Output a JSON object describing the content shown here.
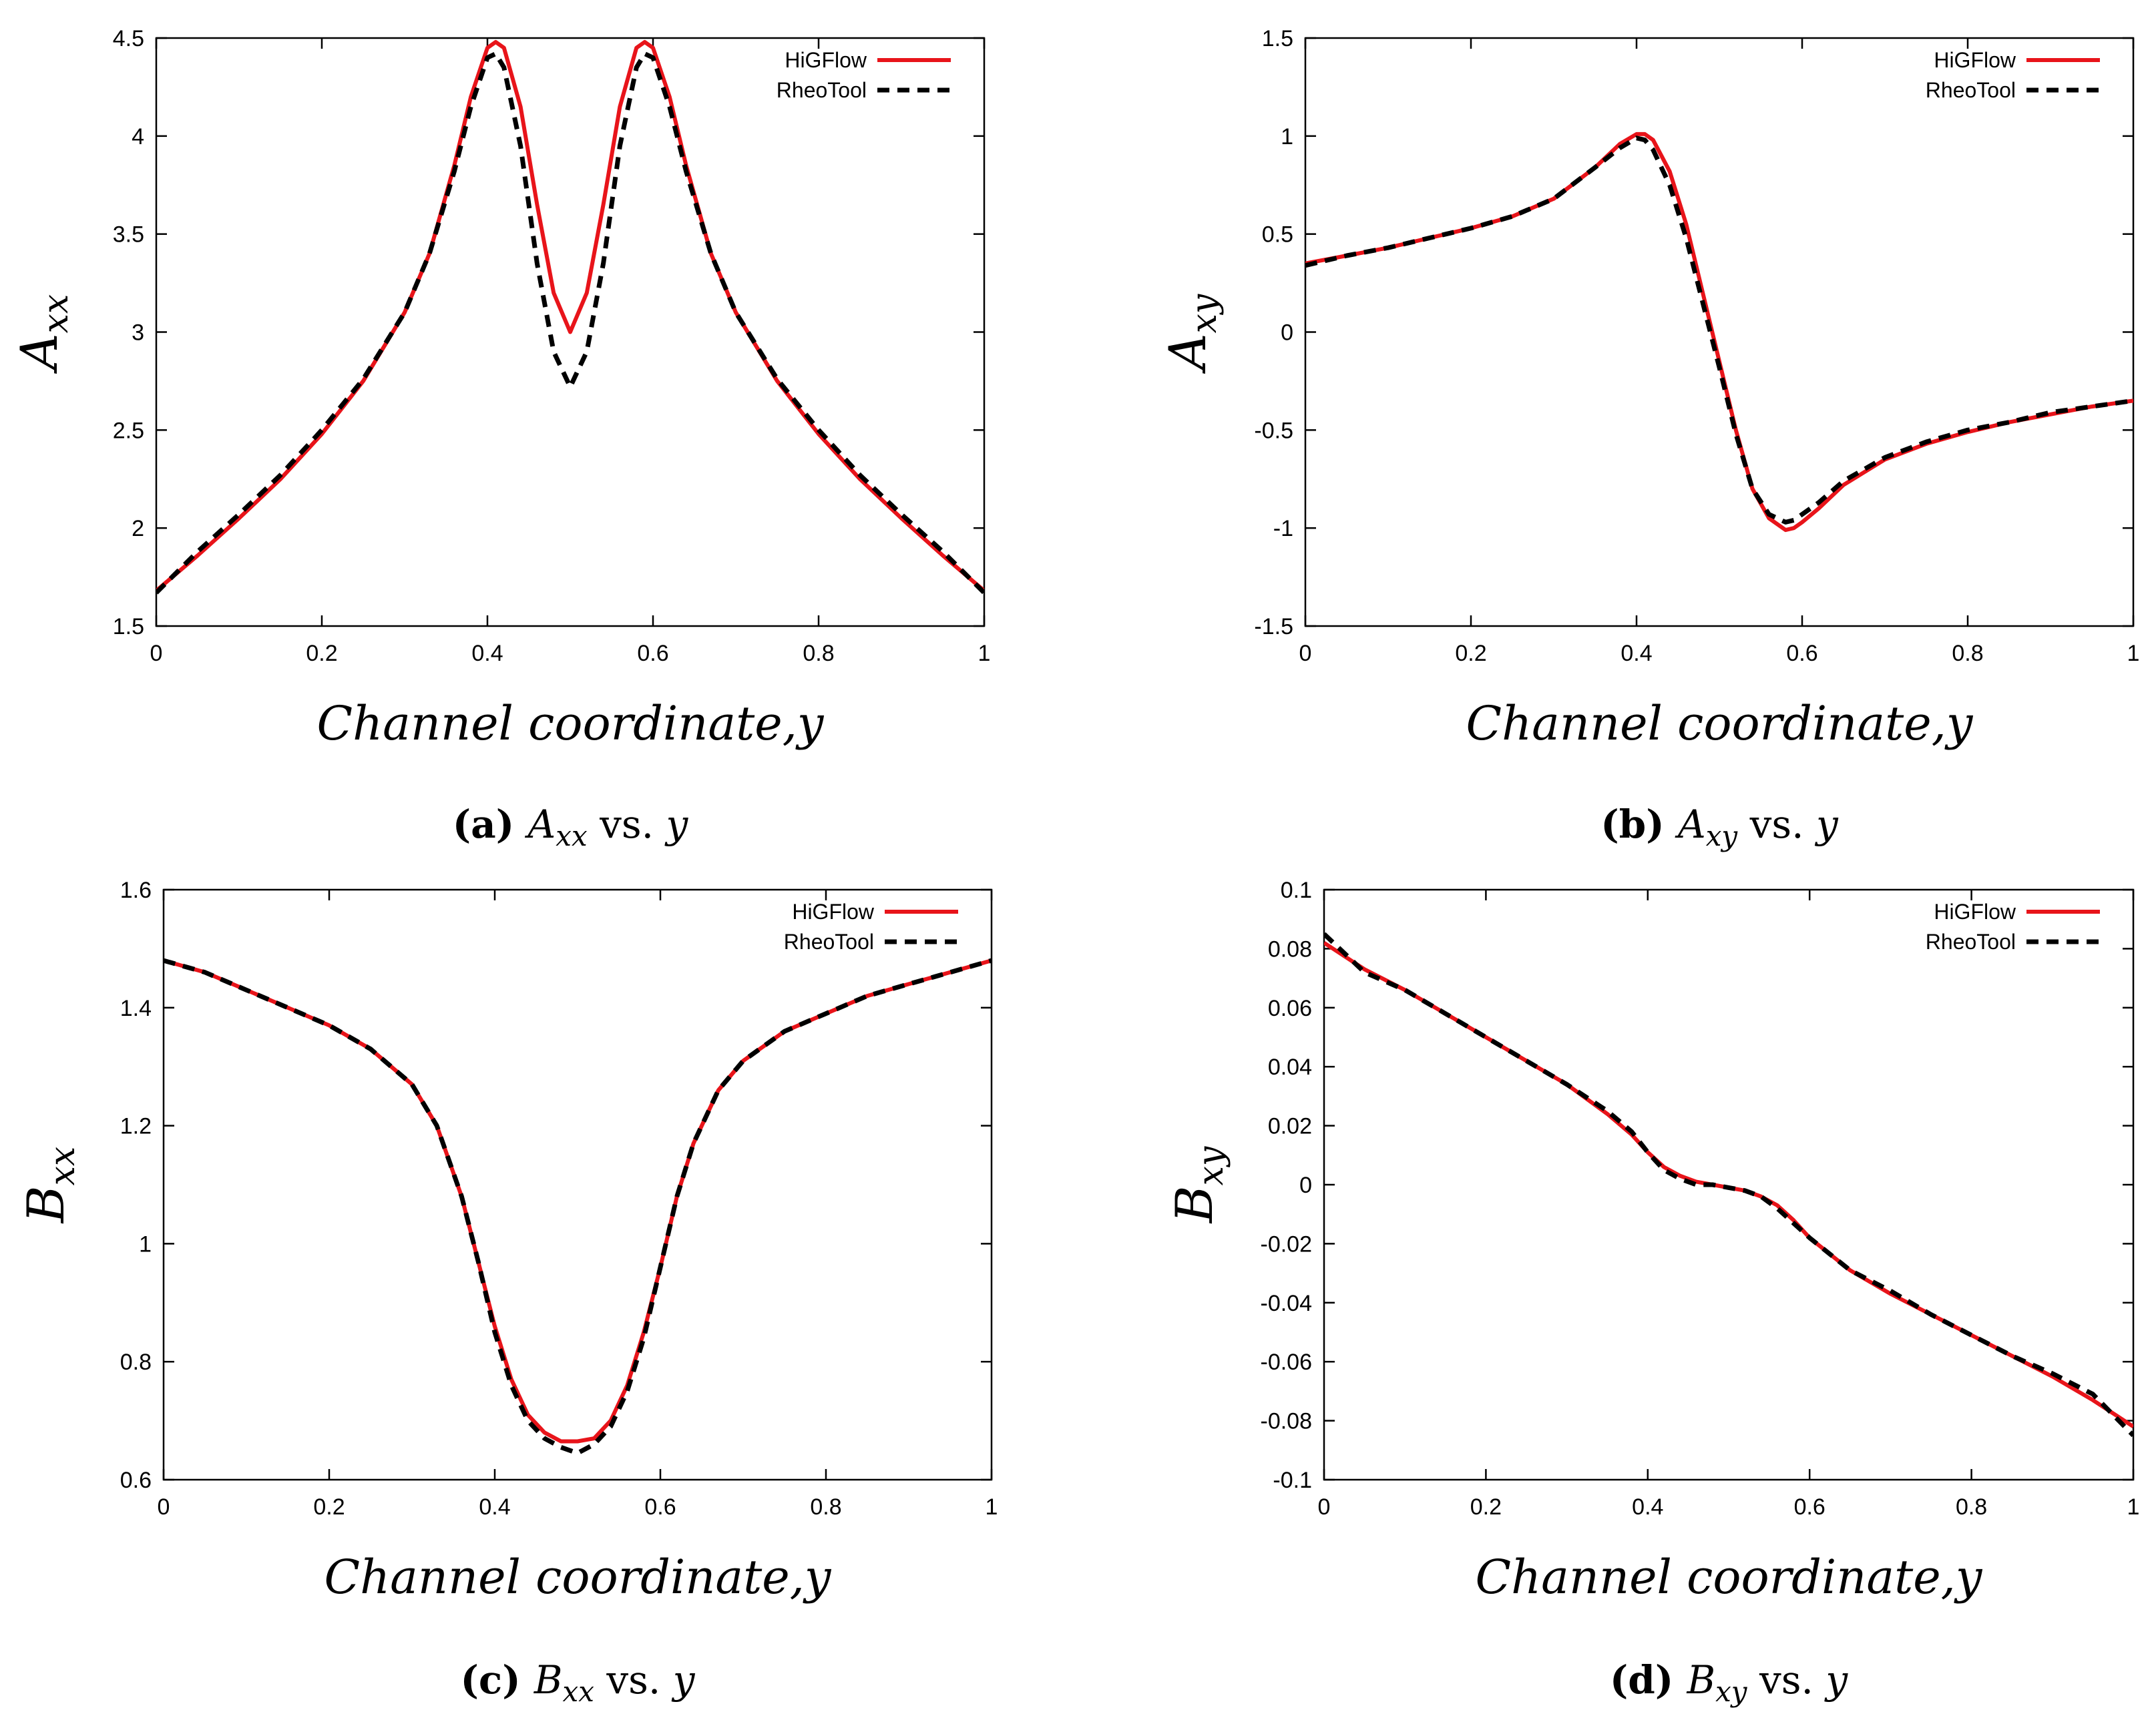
{
  "colors": {
    "higflow": "#e8141a",
    "rheotool": "#000000",
    "frame": "#000000"
  },
  "chart_data": [
    {
      "type": "line",
      "id": "a",
      "title": "",
      "xlabel": "Channel coordinate,y",
      "ylabel_main": "A",
      "ylabel_sub": "xx",
      "xlim": [
        0,
        1
      ],
      "ylim": [
        1.5,
        4.5
      ],
      "xticks": [
        "0",
        "0.2",
        "0.4",
        "0.6",
        "0.8",
        "1"
      ],
      "yticks": [
        "1.5",
        "2",
        "2.5",
        "3",
        "3.5",
        "4",
        "4.5"
      ],
      "legend_position": "top-right",
      "caption": {
        "letter": "(a)",
        "sym": "A",
        "sub": "xx",
        "rest": "vs.",
        "var": "y"
      },
      "series": [
        {
          "name": "HiGFlow",
          "style": "solid",
          "x": [
            0,
            0.05,
            0.1,
            0.15,
            0.2,
            0.25,
            0.3,
            0.33,
            0.36,
            0.38,
            0.4,
            0.41,
            0.42,
            0.44,
            0.46,
            0.48,
            0.5,
            0.52,
            0.54,
            0.56,
            0.58,
            0.59,
            0.6,
            0.62,
            0.64,
            0.67,
            0.7,
            0.75,
            0.8,
            0.85,
            0.9,
            0.95,
            1
          ],
          "y": [
            1.68,
            1.86,
            2.05,
            2.25,
            2.48,
            2.75,
            3.1,
            3.4,
            3.85,
            4.2,
            4.45,
            4.48,
            4.45,
            4.15,
            3.65,
            3.2,
            3.0,
            3.2,
            3.65,
            4.15,
            4.45,
            4.48,
            4.45,
            4.2,
            3.85,
            3.4,
            3.1,
            2.75,
            2.48,
            2.25,
            2.05,
            1.86,
            1.68
          ]
        },
        {
          "name": "RheoTool",
          "style": "dashed",
          "x": [
            0,
            0.05,
            0.1,
            0.15,
            0.2,
            0.25,
            0.3,
            0.33,
            0.36,
            0.38,
            0.4,
            0.41,
            0.42,
            0.44,
            0.46,
            0.48,
            0.5,
            0.52,
            0.54,
            0.56,
            0.58,
            0.59,
            0.6,
            0.62,
            0.64,
            0.67,
            0.7,
            0.75,
            0.8,
            0.85,
            0.9,
            0.95,
            1
          ],
          "y": [
            1.67,
            1.88,
            2.07,
            2.27,
            2.5,
            2.76,
            3.1,
            3.4,
            3.82,
            4.15,
            4.4,
            4.42,
            4.35,
            3.95,
            3.35,
            2.9,
            2.72,
            2.9,
            3.35,
            3.95,
            4.35,
            4.42,
            4.4,
            4.15,
            3.82,
            3.4,
            3.1,
            2.76,
            2.5,
            2.27,
            2.07,
            1.88,
            1.67
          ]
        }
      ]
    },
    {
      "type": "line",
      "id": "b",
      "title": "",
      "xlabel": "Channel coordinate,y",
      "ylabel_main": "A",
      "ylabel_sub": "xy",
      "xlim": [
        0,
        1
      ],
      "ylim": [
        -1.5,
        1.5
      ],
      "xticks": [
        "0",
        "0.2",
        "0.4",
        "0.6",
        "0.8",
        "1"
      ],
      "yticks": [
        "-1.5",
        "-1",
        "-0.5",
        "0",
        "0.5",
        "1",
        "1.5"
      ],
      "legend_position": "top-right",
      "caption": {
        "letter": "(b)",
        "sym": "A",
        "sub": "xy",
        "rest": "vs.",
        "var": "y"
      },
      "series": [
        {
          "name": "HiGFlow",
          "style": "solid",
          "x": [
            0,
            0.05,
            0.1,
            0.15,
            0.2,
            0.25,
            0.3,
            0.35,
            0.38,
            0.4,
            0.41,
            0.42,
            0.44,
            0.46,
            0.48,
            0.5,
            0.52,
            0.54,
            0.56,
            0.58,
            0.59,
            0.6,
            0.62,
            0.65,
            0.7,
            0.75,
            0.8,
            0.85,
            0.9,
            0.95,
            1
          ],
          "y": [
            0.35,
            0.39,
            0.43,
            0.48,
            0.53,
            0.59,
            0.68,
            0.84,
            0.96,
            1.01,
            1.01,
            0.98,
            0.82,
            0.55,
            0.2,
            -0.15,
            -0.5,
            -0.8,
            -0.95,
            -1.01,
            -1.0,
            -0.97,
            -0.9,
            -0.78,
            -0.65,
            -0.57,
            -0.51,
            -0.46,
            -0.42,
            -0.38,
            -0.35
          ]
        },
        {
          "name": "RheoTool",
          "style": "dashed",
          "x": [
            0,
            0.05,
            0.1,
            0.15,
            0.2,
            0.25,
            0.3,
            0.35,
            0.38,
            0.4,
            0.41,
            0.42,
            0.44,
            0.46,
            0.48,
            0.5,
            0.52,
            0.54,
            0.56,
            0.58,
            0.59,
            0.6,
            0.62,
            0.65,
            0.7,
            0.75,
            0.8,
            0.85,
            0.9,
            0.95,
            1
          ],
          "y": [
            0.34,
            0.39,
            0.43,
            0.48,
            0.53,
            0.59,
            0.68,
            0.84,
            0.94,
            0.99,
            0.98,
            0.93,
            0.75,
            0.48,
            0.15,
            -0.18,
            -0.52,
            -0.8,
            -0.93,
            -0.97,
            -0.96,
            -0.93,
            -0.87,
            -0.76,
            -0.64,
            -0.56,
            -0.5,
            -0.46,
            -0.41,
            -0.38,
            -0.35
          ]
        }
      ]
    },
    {
      "type": "line",
      "id": "c",
      "title": "",
      "xlabel": "Channel coordinate,y",
      "ylabel_main": "B",
      "ylabel_sub": "xx",
      "xlim": [
        0,
        1
      ],
      "ylim": [
        0.6,
        1.6
      ],
      "xticks": [
        "0",
        "0.2",
        "0.4",
        "0.6",
        "0.8",
        "1"
      ],
      "yticks": [
        "0.6",
        "0.8",
        "1",
        "1.2",
        "1.4",
        "1.6"
      ],
      "legend_position": "top-right",
      "caption": {
        "letter": "(c)",
        "sym": "B",
        "sub": "xx",
        "rest": "vs.",
        "var": "y"
      },
      "series": [
        {
          "name": "HiGFlow",
          "style": "solid",
          "x": [
            0,
            0.05,
            0.1,
            0.15,
            0.2,
            0.25,
            0.3,
            0.33,
            0.36,
            0.38,
            0.4,
            0.42,
            0.44,
            0.46,
            0.48,
            0.5,
            0.52,
            0.54,
            0.56,
            0.58,
            0.6,
            0.62,
            0.64,
            0.67,
            0.7,
            0.75,
            0.8,
            0.85,
            0.9,
            0.95,
            1
          ],
          "y": [
            1.48,
            1.46,
            1.43,
            1.4,
            1.37,
            1.33,
            1.27,
            1.2,
            1.08,
            0.97,
            0.86,
            0.77,
            0.71,
            0.68,
            0.665,
            0.665,
            0.67,
            0.7,
            0.76,
            0.85,
            0.96,
            1.08,
            1.17,
            1.26,
            1.31,
            1.36,
            1.39,
            1.42,
            1.44,
            1.46,
            1.48
          ]
        },
        {
          "name": "RheoTool",
          "style": "dashed",
          "x": [
            0,
            0.05,
            0.1,
            0.15,
            0.2,
            0.25,
            0.3,
            0.33,
            0.36,
            0.38,
            0.4,
            0.42,
            0.44,
            0.46,
            0.48,
            0.5,
            0.52,
            0.54,
            0.56,
            0.58,
            0.6,
            0.62,
            0.64,
            0.67,
            0.7,
            0.75,
            0.8,
            0.85,
            0.9,
            0.95,
            1
          ],
          "y": [
            1.48,
            1.46,
            1.43,
            1.4,
            1.37,
            1.33,
            1.27,
            1.2,
            1.08,
            0.97,
            0.85,
            0.76,
            0.7,
            0.67,
            0.655,
            0.645,
            0.66,
            0.69,
            0.75,
            0.84,
            0.96,
            1.08,
            1.17,
            1.26,
            1.31,
            1.36,
            1.39,
            1.42,
            1.44,
            1.46,
            1.48
          ]
        }
      ]
    },
    {
      "type": "line",
      "id": "d",
      "title": "",
      "xlabel": "Channel coordinate,y",
      "ylabel_main": "B",
      "ylabel_sub": "xy",
      "xlim": [
        0,
        1
      ],
      "ylim": [
        -0.1,
        0.1
      ],
      "xticks": [
        "0",
        "0.2",
        "0.4",
        "0.6",
        "0.8",
        "1"
      ],
      "yticks": [
        "-0.1",
        "-0.08",
        "-0.06",
        "-0.04",
        "-0.02",
        "0",
        "0.02",
        "0.04",
        "0.06",
        "0.08",
        "0.1"
      ],
      "legend_position": "top-right",
      "caption": {
        "letter": "(d)",
        "sym": "B",
        "sub": "xy",
        "rest": "vs.",
        "var": "y"
      },
      "series": [
        {
          "name": "HiGFlow",
          "style": "solid",
          "x": [
            0,
            0.05,
            0.1,
            0.15,
            0.2,
            0.25,
            0.3,
            0.35,
            0.38,
            0.4,
            0.42,
            0.44,
            0.46,
            0.48,
            0.5,
            0.52,
            0.54,
            0.56,
            0.58,
            0.6,
            0.65,
            0.7,
            0.75,
            0.8,
            0.85,
            0.9,
            0.95,
            1
          ],
          "y": [
            0.082,
            0.073,
            0.066,
            0.058,
            0.05,
            0.042,
            0.034,
            0.024,
            0.017,
            0.011,
            0.006,
            0.003,
            0.001,
            0.0,
            -0.001,
            -0.002,
            -0.004,
            -0.007,
            -0.012,
            -0.018,
            -0.029,
            -0.037,
            -0.044,
            -0.051,
            -0.058,
            -0.065,
            -0.073,
            -0.082
          ]
        },
        {
          "name": "RheoTool",
          "style": "dashed",
          "x": [
            0,
            0.05,
            0.1,
            0.15,
            0.2,
            0.25,
            0.3,
            0.35,
            0.38,
            0.4,
            0.42,
            0.44,
            0.46,
            0.48,
            0.5,
            0.52,
            0.54,
            0.56,
            0.58,
            0.6,
            0.65,
            0.7,
            0.75,
            0.8,
            0.85,
            0.9,
            0.95,
            1
          ],
          "y": [
            0.085,
            0.072,
            0.066,
            0.058,
            0.05,
            0.042,
            0.034,
            0.025,
            0.018,
            0.011,
            0.005,
            0.002,
            0.0,
            0.0,
            -0.001,
            -0.002,
            -0.004,
            -0.008,
            -0.013,
            -0.018,
            -0.029,
            -0.036,
            -0.044,
            -0.051,
            -0.058,
            -0.064,
            -0.071,
            -0.085
          ]
        }
      ]
    }
  ]
}
